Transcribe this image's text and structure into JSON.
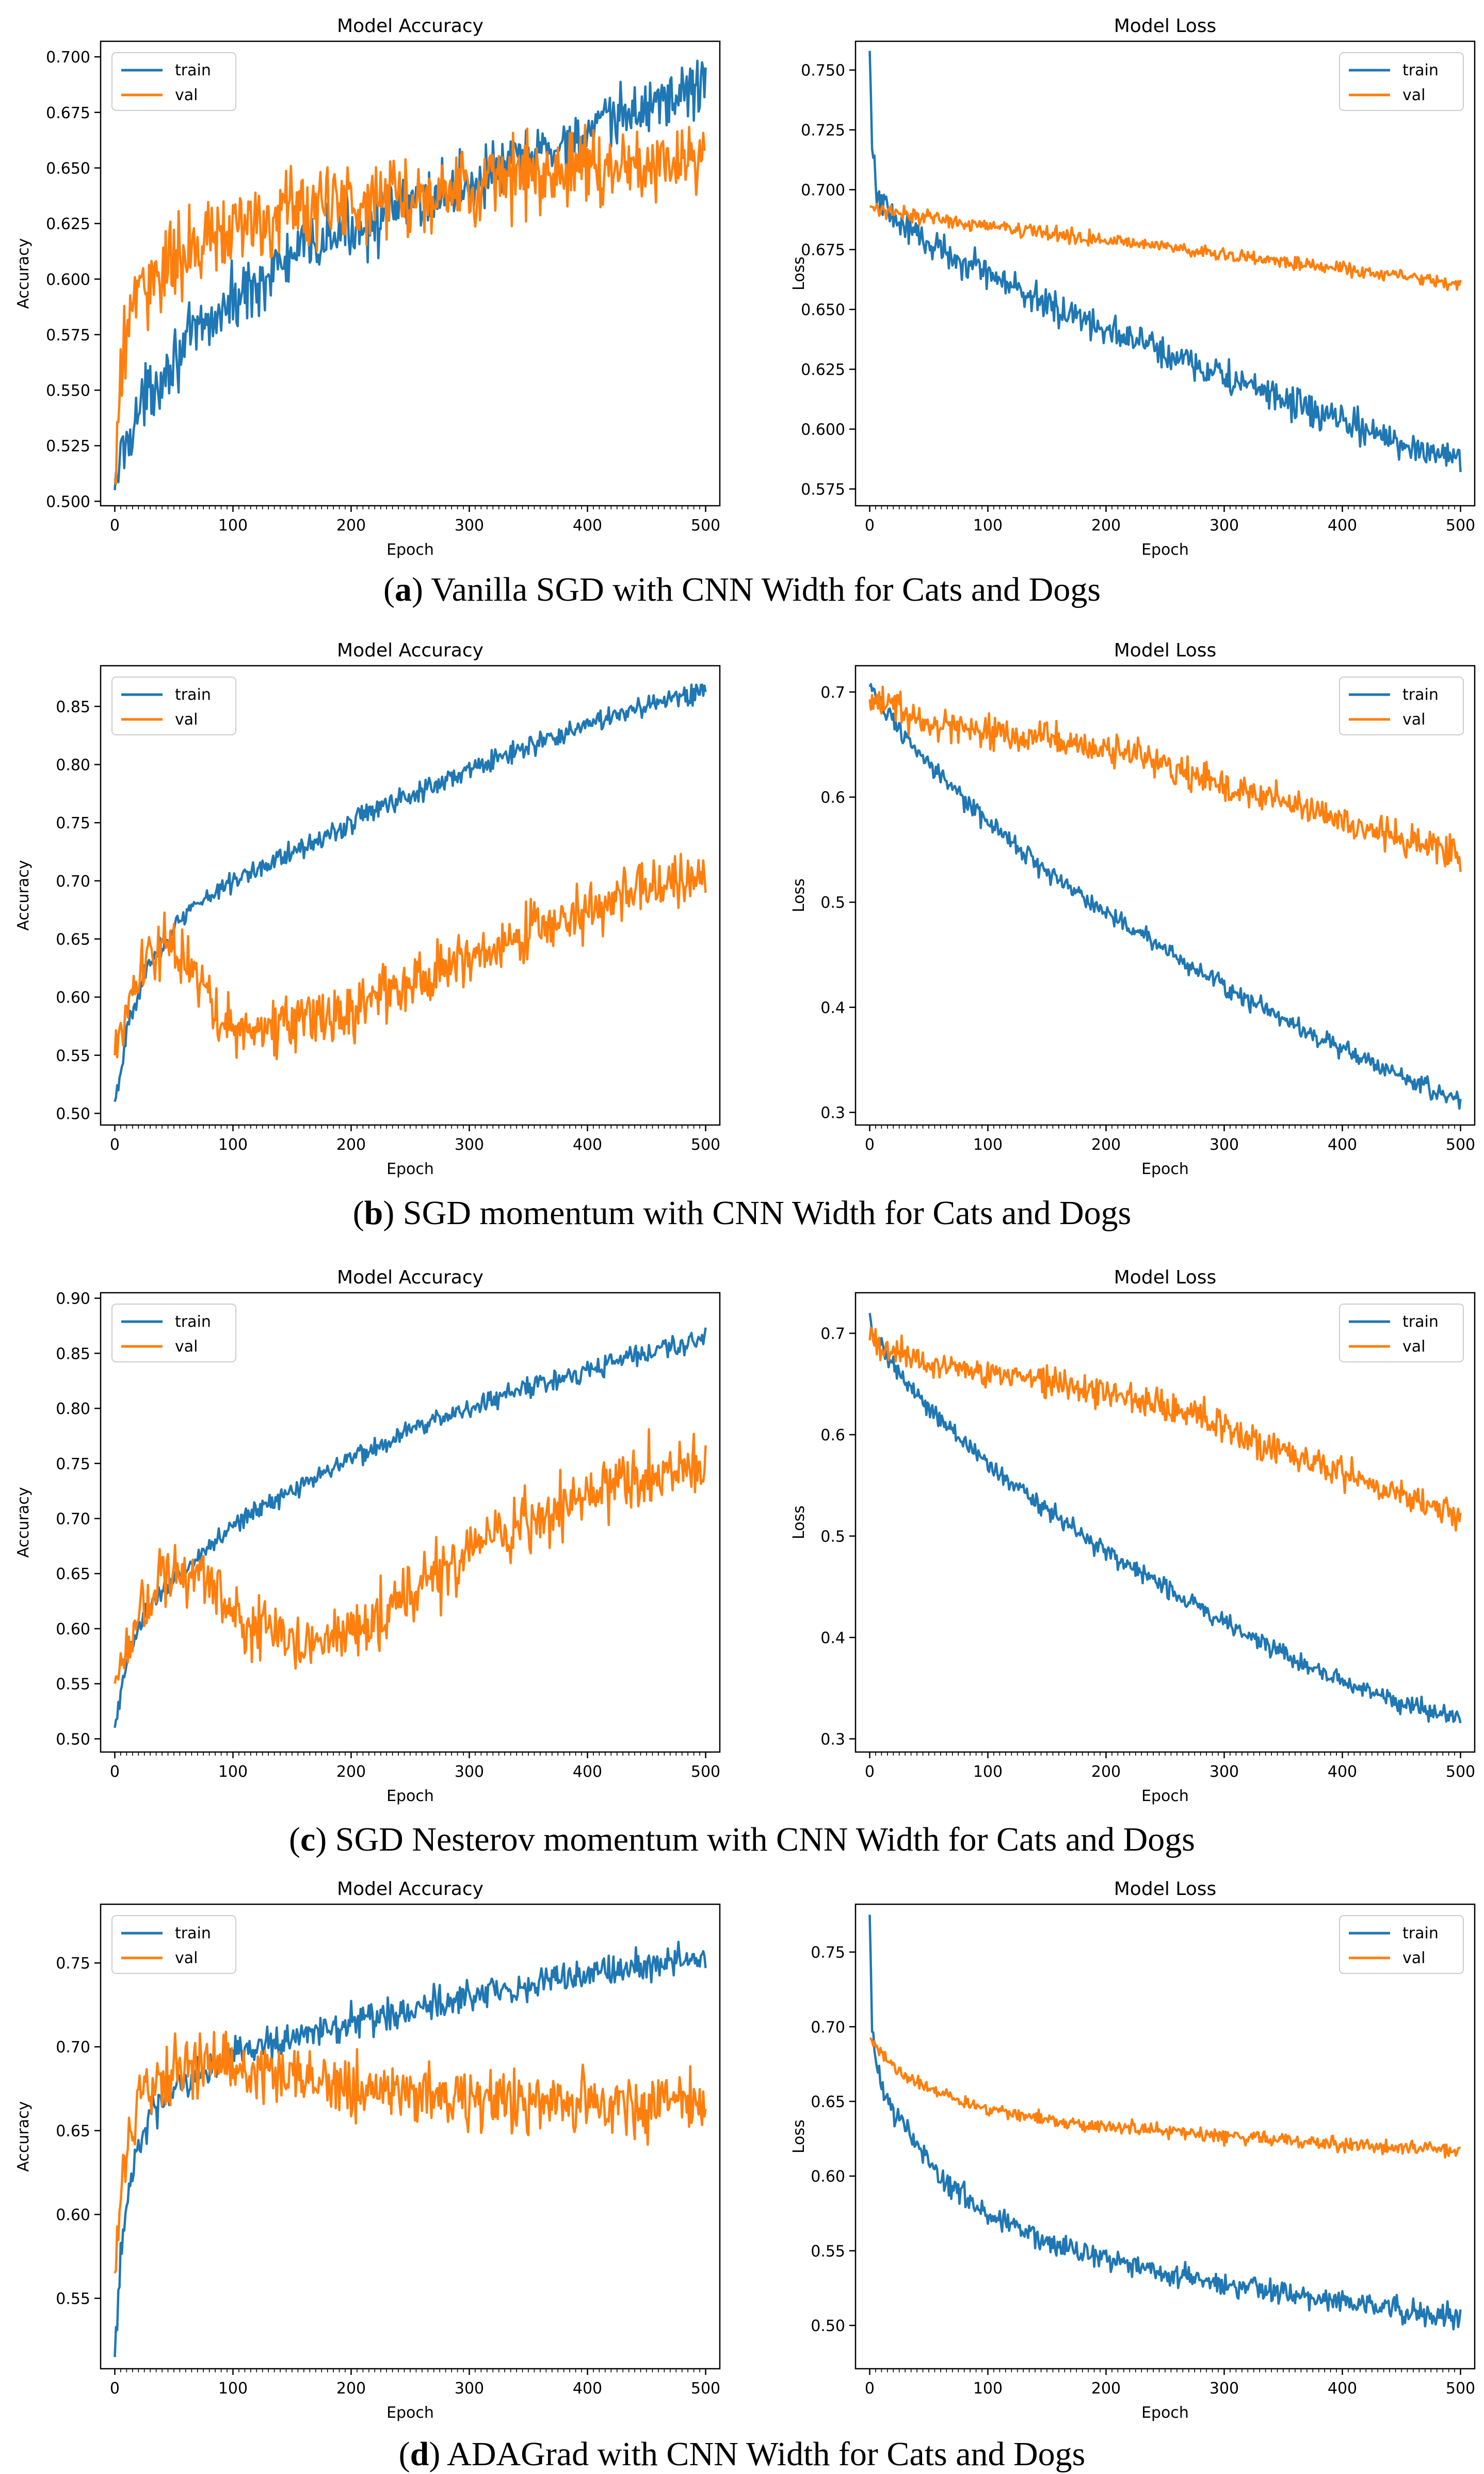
{
  "colors": {
    "train": "#1f77b4",
    "val": "#ff7f0e",
    "axis": "#000000",
    "text": "#000000"
  },
  "captions": [
    {
      "letter": "a",
      "text": "Vanilla SGD with CNN Width for Cats and Dogs"
    },
    {
      "letter": "b",
      "text": "SGD momentum with CNN Width for Cats and Dogs"
    },
    {
      "letter": "c",
      "text": "SGD Nesterov momentum with CNN Width for Cats and Dogs"
    },
    {
      "letter": "d",
      "text": "ADAGrad with CNN Width for Cats and Dogs"
    }
  ],
  "chart_data": [
    {
      "type": "line",
      "title": "Model Accuracy",
      "xlabel": "Epoch",
      "ylabel": "Accuracy",
      "xlim": [
        -12,
        512
      ],
      "ylim": [
        0.498,
        0.707
      ],
      "xticks": [
        0,
        100,
        200,
        300,
        400,
        500
      ],
      "yticks": [
        0.5,
        0.525,
        0.55,
        0.575,
        0.6,
        0.625,
        0.65,
        0.675,
        0.7
      ],
      "ytick_labels": [
        "0.500",
        "0.525",
        "0.550",
        "0.575",
        "0.600",
        "0.625",
        "0.650",
        "0.675",
        "0.700"
      ],
      "legend": "top-left",
      "series": [
        {
          "name": "train",
          "x": [
            0,
            5,
            15,
            30,
            50,
            75,
            100,
            125,
            150,
            200,
            250,
            300,
            350,
            400,
            450,
            500
          ],
          "values": [
            0.505,
            0.52,
            0.535,
            0.55,
            0.565,
            0.578,
            0.59,
            0.6,
            0.61,
            0.623,
            0.633,
            0.643,
            0.655,
            0.665,
            0.678,
            0.688
          ],
          "noise": 0.012
        },
        {
          "name": "val",
          "x": [
            0,
            5,
            15,
            30,
            50,
            75,
            100,
            150,
            200,
            250,
            300,
            350,
            400,
            450,
            500
          ],
          "values": [
            0.51,
            0.56,
            0.59,
            0.6,
            0.608,
            0.615,
            0.622,
            0.63,
            0.635,
            0.638,
            0.642,
            0.646,
            0.649,
            0.652,
            0.655
          ],
          "noise": 0.016
        }
      ]
    },
    {
      "type": "line",
      "title": "Model Loss",
      "xlabel": "Epoch",
      "ylabel": "Loss",
      "xlim": [
        -12,
        512
      ],
      "ylim": [
        0.568,
        0.762
      ],
      "xticks": [
        0,
        100,
        200,
        300,
        400,
        500
      ],
      "yticks": [
        0.575,
        0.6,
        0.625,
        0.65,
        0.675,
        0.7,
        0.725,
        0.75
      ],
      "ytick_labels": [
        "0.575",
        "0.600",
        "0.625",
        "0.650",
        "0.675",
        "0.700",
        "0.725",
        "0.750"
      ],
      "legend": "top-right",
      "series": [
        {
          "name": "train",
          "x": [
            0,
            2,
            5,
            10,
            20,
            50,
            100,
            150,
            200,
            250,
            300,
            350,
            400,
            450,
            500
          ],
          "values": [
            0.758,
            0.72,
            0.703,
            0.695,
            0.688,
            0.678,
            0.665,
            0.652,
            0.642,
            0.632,
            0.622,
            0.612,
            0.603,
            0.594,
            0.588
          ],
          "noise": 0.006
        },
        {
          "name": "val",
          "x": [
            0,
            50,
            100,
            150,
            200,
            250,
            300,
            350,
            400,
            450,
            500
          ],
          "values": [
            0.693,
            0.688,
            0.685,
            0.682,
            0.679,
            0.676,
            0.673,
            0.67,
            0.667,
            0.664,
            0.66
          ],
          "noise": 0.0025
        }
      ]
    },
    {
      "type": "line",
      "title": "Model Accuracy",
      "xlabel": "Epoch",
      "ylabel": "Accuracy",
      "xlim": [
        -12,
        512
      ],
      "ylim": [
        0.49,
        0.885
      ],
      "xticks": [
        0,
        100,
        200,
        300,
        400,
        500
      ],
      "yticks": [
        0.5,
        0.55,
        0.6,
        0.65,
        0.7,
        0.75,
        0.8,
        0.85
      ],
      "ytick_labels": [
        "0.50",
        "0.55",
        "0.60",
        "0.65",
        "0.70",
        "0.75",
        "0.80",
        "0.85"
      ],
      "legend": "top-left",
      "series": [
        {
          "name": "train",
          "x": [
            0,
            10,
            25,
            50,
            75,
            100,
            150,
            200,
            250,
            300,
            350,
            400,
            450,
            500
          ],
          "values": [
            0.51,
            0.57,
            0.62,
            0.66,
            0.685,
            0.7,
            0.725,
            0.75,
            0.775,
            0.795,
            0.815,
            0.835,
            0.85,
            0.865
          ],
          "noise": 0.008
        },
        {
          "name": "val",
          "x": [
            0,
            20,
            40,
            60,
            80,
            100,
            150,
            200,
            250,
            300,
            350,
            400,
            450,
            500
          ],
          "values": [
            0.55,
            0.62,
            0.645,
            0.63,
            0.595,
            0.57,
            0.578,
            0.59,
            0.61,
            0.635,
            0.655,
            0.675,
            0.695,
            0.705
          ],
          "noise": 0.022
        }
      ]
    },
    {
      "type": "line",
      "title": "Model Loss",
      "xlabel": "Epoch",
      "ylabel": "Loss",
      "xlim": [
        -12,
        512
      ],
      "ylim": [
        0.288,
        0.725
      ],
      "xticks": [
        0,
        100,
        200,
        300,
        400,
        500
      ],
      "yticks": [
        0.3,
        0.4,
        0.5,
        0.6,
        0.7
      ],
      "ytick_labels": [
        "0.3",
        "0.4",
        "0.5",
        "0.6",
        "0.7"
      ],
      "legend": "top-right",
      "series": [
        {
          "name": "train",
          "x": [
            0,
            25,
            50,
            100,
            150,
            200,
            250,
            300,
            350,
            400,
            450,
            500
          ],
          "values": [
            0.705,
            0.665,
            0.63,
            0.575,
            0.53,
            0.49,
            0.455,
            0.42,
            0.39,
            0.36,
            0.335,
            0.31
          ],
          "noise": 0.008
        },
        {
          "name": "val",
          "x": [
            0,
            50,
            100,
            150,
            200,
            250,
            300,
            350,
            400,
            450,
            500
          ],
          "values": [
            0.693,
            0.672,
            0.662,
            0.655,
            0.645,
            0.63,
            0.612,
            0.595,
            0.578,
            0.56,
            0.545
          ],
          "noise": 0.014
        }
      ]
    },
    {
      "type": "line",
      "title": "Model Accuracy",
      "xlabel": "Epoch",
      "ylabel": "Accuracy",
      "xlim": [
        -12,
        512
      ],
      "ylim": [
        0.488,
        0.905
      ],
      "xticks": [
        0,
        100,
        200,
        300,
        400,
        500
      ],
      "yticks": [
        0.5,
        0.55,
        0.6,
        0.65,
        0.7,
        0.75,
        0.8,
        0.85,
        0.9
      ],
      "ytick_labels": [
        "0.50",
        "0.55",
        "0.60",
        "0.65",
        "0.70",
        "0.75",
        "0.80",
        "0.85",
        "0.90"
      ],
      "legend": "top-left",
      "series": [
        {
          "name": "train",
          "x": [
            0,
            10,
            25,
            50,
            75,
            100,
            150,
            200,
            250,
            300,
            350,
            400,
            450,
            500
          ],
          "values": [
            0.51,
            0.57,
            0.615,
            0.645,
            0.67,
            0.695,
            0.725,
            0.755,
            0.78,
            0.8,
            0.82,
            0.835,
            0.85,
            0.865
          ],
          "noise": 0.008
        },
        {
          "name": "val",
          "x": [
            0,
            20,
            40,
            60,
            80,
            100,
            150,
            200,
            250,
            300,
            350,
            400,
            450,
            500
          ],
          "values": [
            0.55,
            0.62,
            0.645,
            0.655,
            0.64,
            0.61,
            0.585,
            0.6,
            0.63,
            0.665,
            0.695,
            0.72,
            0.74,
            0.75
          ],
          "noise": 0.025
        }
      ]
    },
    {
      "type": "line",
      "title": "Model Loss",
      "xlabel": "Epoch",
      "ylabel": "Loss",
      "xlim": [
        -12,
        512
      ],
      "ylim": [
        0.287,
        0.74
      ],
      "xticks": [
        0,
        100,
        200,
        300,
        400,
        500
      ],
      "yticks": [
        0.3,
        0.4,
        0.5,
        0.6,
        0.7
      ],
      "ytick_labels": [
        "0.3",
        "0.4",
        "0.5",
        "0.6",
        "0.7"
      ],
      "legend": "top-right",
      "series": [
        {
          "name": "train",
          "x": [
            0,
            3,
            25,
            50,
            100,
            150,
            200,
            250,
            300,
            350,
            400,
            450,
            500
          ],
          "values": [
            0.72,
            0.7,
            0.66,
            0.625,
            0.57,
            0.525,
            0.485,
            0.45,
            0.415,
            0.385,
            0.355,
            0.335,
            0.32
          ],
          "noise": 0.008
        },
        {
          "name": "val",
          "x": [
            0,
            50,
            100,
            150,
            200,
            250,
            300,
            350,
            400,
            450,
            500
          ],
          "values": [
            0.693,
            0.672,
            0.66,
            0.652,
            0.643,
            0.628,
            0.607,
            0.585,
            0.563,
            0.54,
            0.52
          ],
          "noise": 0.014
        }
      ]
    },
    {
      "type": "line",
      "title": "Model Accuracy",
      "xlabel": "Epoch",
      "ylabel": "Accuracy",
      "xlim": [
        -12,
        512
      ],
      "ylim": [
        0.508,
        0.785
      ],
      "xticks": [
        0,
        100,
        200,
        300,
        400,
        500
      ],
      "yticks": [
        0.55,
        0.6,
        0.65,
        0.7,
        0.75
      ],
      "ytick_labels": [
        "0.55",
        "0.60",
        "0.65",
        "0.70",
        "0.75"
      ],
      "legend": "top-left",
      "series": [
        {
          "name": "train",
          "x": [
            0,
            5,
            15,
            30,
            50,
            75,
            100,
            150,
            200,
            250,
            300,
            350,
            400,
            450,
            500
          ],
          "values": [
            0.515,
            0.58,
            0.63,
            0.66,
            0.675,
            0.685,
            0.695,
            0.705,
            0.715,
            0.722,
            0.73,
            0.737,
            0.743,
            0.749,
            0.755
          ],
          "noise": 0.008
        },
        {
          "name": "val",
          "x": [
            0,
            5,
            15,
            30,
            50,
            75,
            100,
            125,
            150,
            200,
            250,
            300,
            350,
            400,
            450,
            500
          ],
          "values": [
            0.565,
            0.62,
            0.655,
            0.675,
            0.685,
            0.69,
            0.69,
            0.685,
            0.68,
            0.675,
            0.672,
            0.67,
            0.668,
            0.667,
            0.667,
            0.667
          ],
          "noise": 0.016
        }
      ]
    },
    {
      "type": "line",
      "title": "Model Loss",
      "xlabel": "Epoch",
      "ylabel": "Loss",
      "xlim": [
        -12,
        512
      ],
      "ylim": [
        0.471,
        0.782
      ],
      "xticks": [
        0,
        100,
        200,
        300,
        400,
        500
      ],
      "yticks": [
        0.5,
        0.55,
        0.6,
        0.65,
        0.7,
        0.75
      ],
      "ytick_labels": [
        "0.50",
        "0.55",
        "0.60",
        "0.65",
        "0.70",
        "0.75"
      ],
      "legend": "top-right",
      "series": [
        {
          "name": "train",
          "x": [
            0,
            2,
            5,
            10,
            20,
            40,
            60,
            100,
            150,
            200,
            250,
            300,
            350,
            400,
            450,
            500
          ],
          "values": [
            0.775,
            0.7,
            0.68,
            0.665,
            0.645,
            0.62,
            0.6,
            0.575,
            0.555,
            0.545,
            0.535,
            0.528,
            0.522,
            0.516,
            0.51,
            0.505
          ],
          "noise": 0.007
        },
        {
          "name": "val",
          "x": [
            0,
            25,
            50,
            100,
            150,
            200,
            250,
            300,
            350,
            400,
            450,
            500
          ],
          "values": [
            0.692,
            0.67,
            0.658,
            0.645,
            0.638,
            0.633,
            0.63,
            0.627,
            0.624,
            0.621,
            0.619,
            0.617
          ],
          "noise": 0.004
        }
      ]
    }
  ]
}
